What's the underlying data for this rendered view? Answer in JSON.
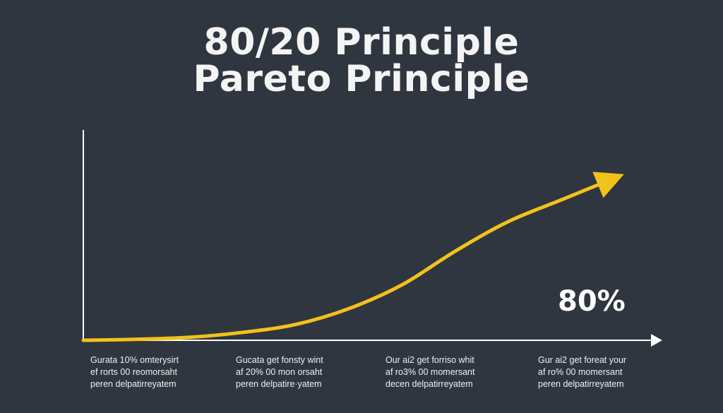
{
  "title_line1": "80/20 Principle",
  "title_line2": "Pareto Principle",
  "annotation": "80%",
  "captions": [
    [
      "Gurata 10% omterysirt",
      "ef rorts 00 reomorsaht",
      "peren delpatirreyatem"
    ],
    [
      "Gucata get fonsty wint",
      "af 20% 00 mon orsaht",
      "peren delpatire·yatem"
    ],
    [
      "Our ai2 get forriso whit",
      "af ro3% 00 momersant",
      "decen delpatirreyatem"
    ],
    [
      "Gur ai2 get foreat your",
      "af ro% 00 momersant",
      "peren delpatirreyatem"
    ]
  ],
  "colors": {
    "background": "#2f3640",
    "curve": "#f2c21b",
    "axis": "#ffffff"
  },
  "chart_data": {
    "type": "line",
    "series": [
      {
        "x": [
          0,
          10,
          20,
          30,
          40,
          50,
          60,
          70,
          80,
          90,
          100
        ],
        "y": [
          0,
          0.5,
          1.5,
          4,
          8,
          16,
          28,
          45,
          60,
          71,
          82
        ]
      }
    ],
    "xlim": [
      0,
      100
    ],
    "ylim": [
      0,
      100
    ],
    "grid": false
  }
}
